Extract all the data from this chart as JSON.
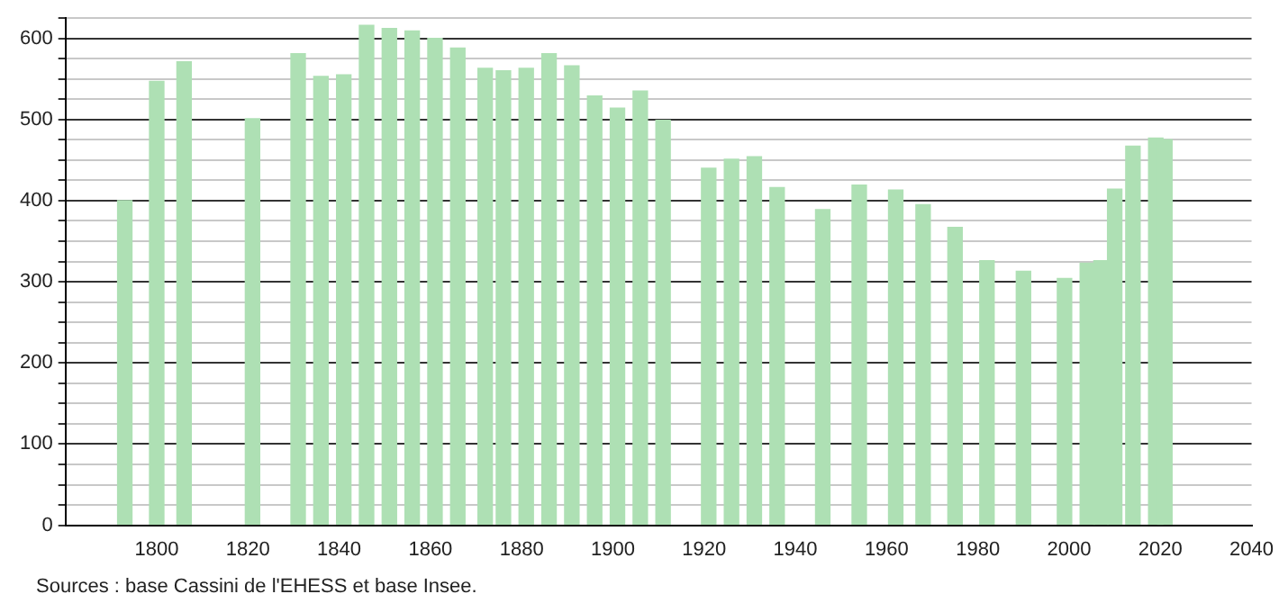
{
  "chart_data": {
    "type": "bar",
    "x": [
      1793,
      1800,
      1806,
      1821,
      1831,
      1836,
      1841,
      1846,
      1851,
      1856,
      1861,
      1866,
      1872,
      1876,
      1881,
      1886,
      1891,
      1896,
      1901,
      1906,
      1911,
      1921,
      1926,
      1931,
      1936,
      1946,
      1954,
      1962,
      1968,
      1975,
      1982,
      1990,
      1999,
      2004,
      2007,
      2010,
      2014,
      2019,
      2021
    ],
    "series": [
      {
        "color": "#aee0b4",
        "values": [
          400,
          547,
          571,
          501,
          581,
          553,
          555,
          616,
          612,
          609,
          600,
          588,
          563,
          560,
          563,
          581,
          566,
          529,
          514,
          535,
          499,
          440,
          451,
          454,
          416,
          389,
          419,
          413,
          395,
          367,
          326,
          313,
          304,
          323,
          326,
          414,
          467,
          477,
          475
        ]
      }
    ],
    "xlim": [
      1780,
      2040
    ],
    "xticks": [
      1800,
      1820,
      1840,
      1860,
      1880,
      1900,
      1920,
      1940,
      1960,
      1980,
      2000,
      2020,
      2040
    ],
    "ylim": [
      0,
      625
    ],
    "yticks": [
      0,
      {
        "value": 25,
        "label": null
      },
      {
        "value": 50,
        "label": null
      },
      {
        "value": 75,
        "label": null
      },
      100,
      {
        "value": 125,
        "label": null
      },
      {
        "value": 150,
        "label": null
      },
      {
        "value": 175,
        "label": null
      },
      200,
      {
        "value": 225,
        "label": null
      },
      {
        "value": 250,
        "label": null
      },
      {
        "value": 275,
        "label": null
      },
      300,
      {
        "value": 325,
        "label": null
      },
      {
        "value": 350,
        "label": null
      },
      {
        "value": 375,
        "label": null
      },
      400,
      {
        "value": 425,
        "label": null
      },
      {
        "value": 450,
        "label": null
      },
      {
        "value": 475,
        "label": null
      },
      500,
      {
        "value": 525,
        "label": null
      },
      {
        "value": 550,
        "label": null
      },
      {
        "value": 575,
        "label": null
      },
      600,
      {
        "value": 625,
        "label": null
      }
    ],
    "grid": "y",
    "legend": false,
    "annotations": [
      "Sources : base Cassini de l'EHESS et base Insee."
    ]
  }
}
